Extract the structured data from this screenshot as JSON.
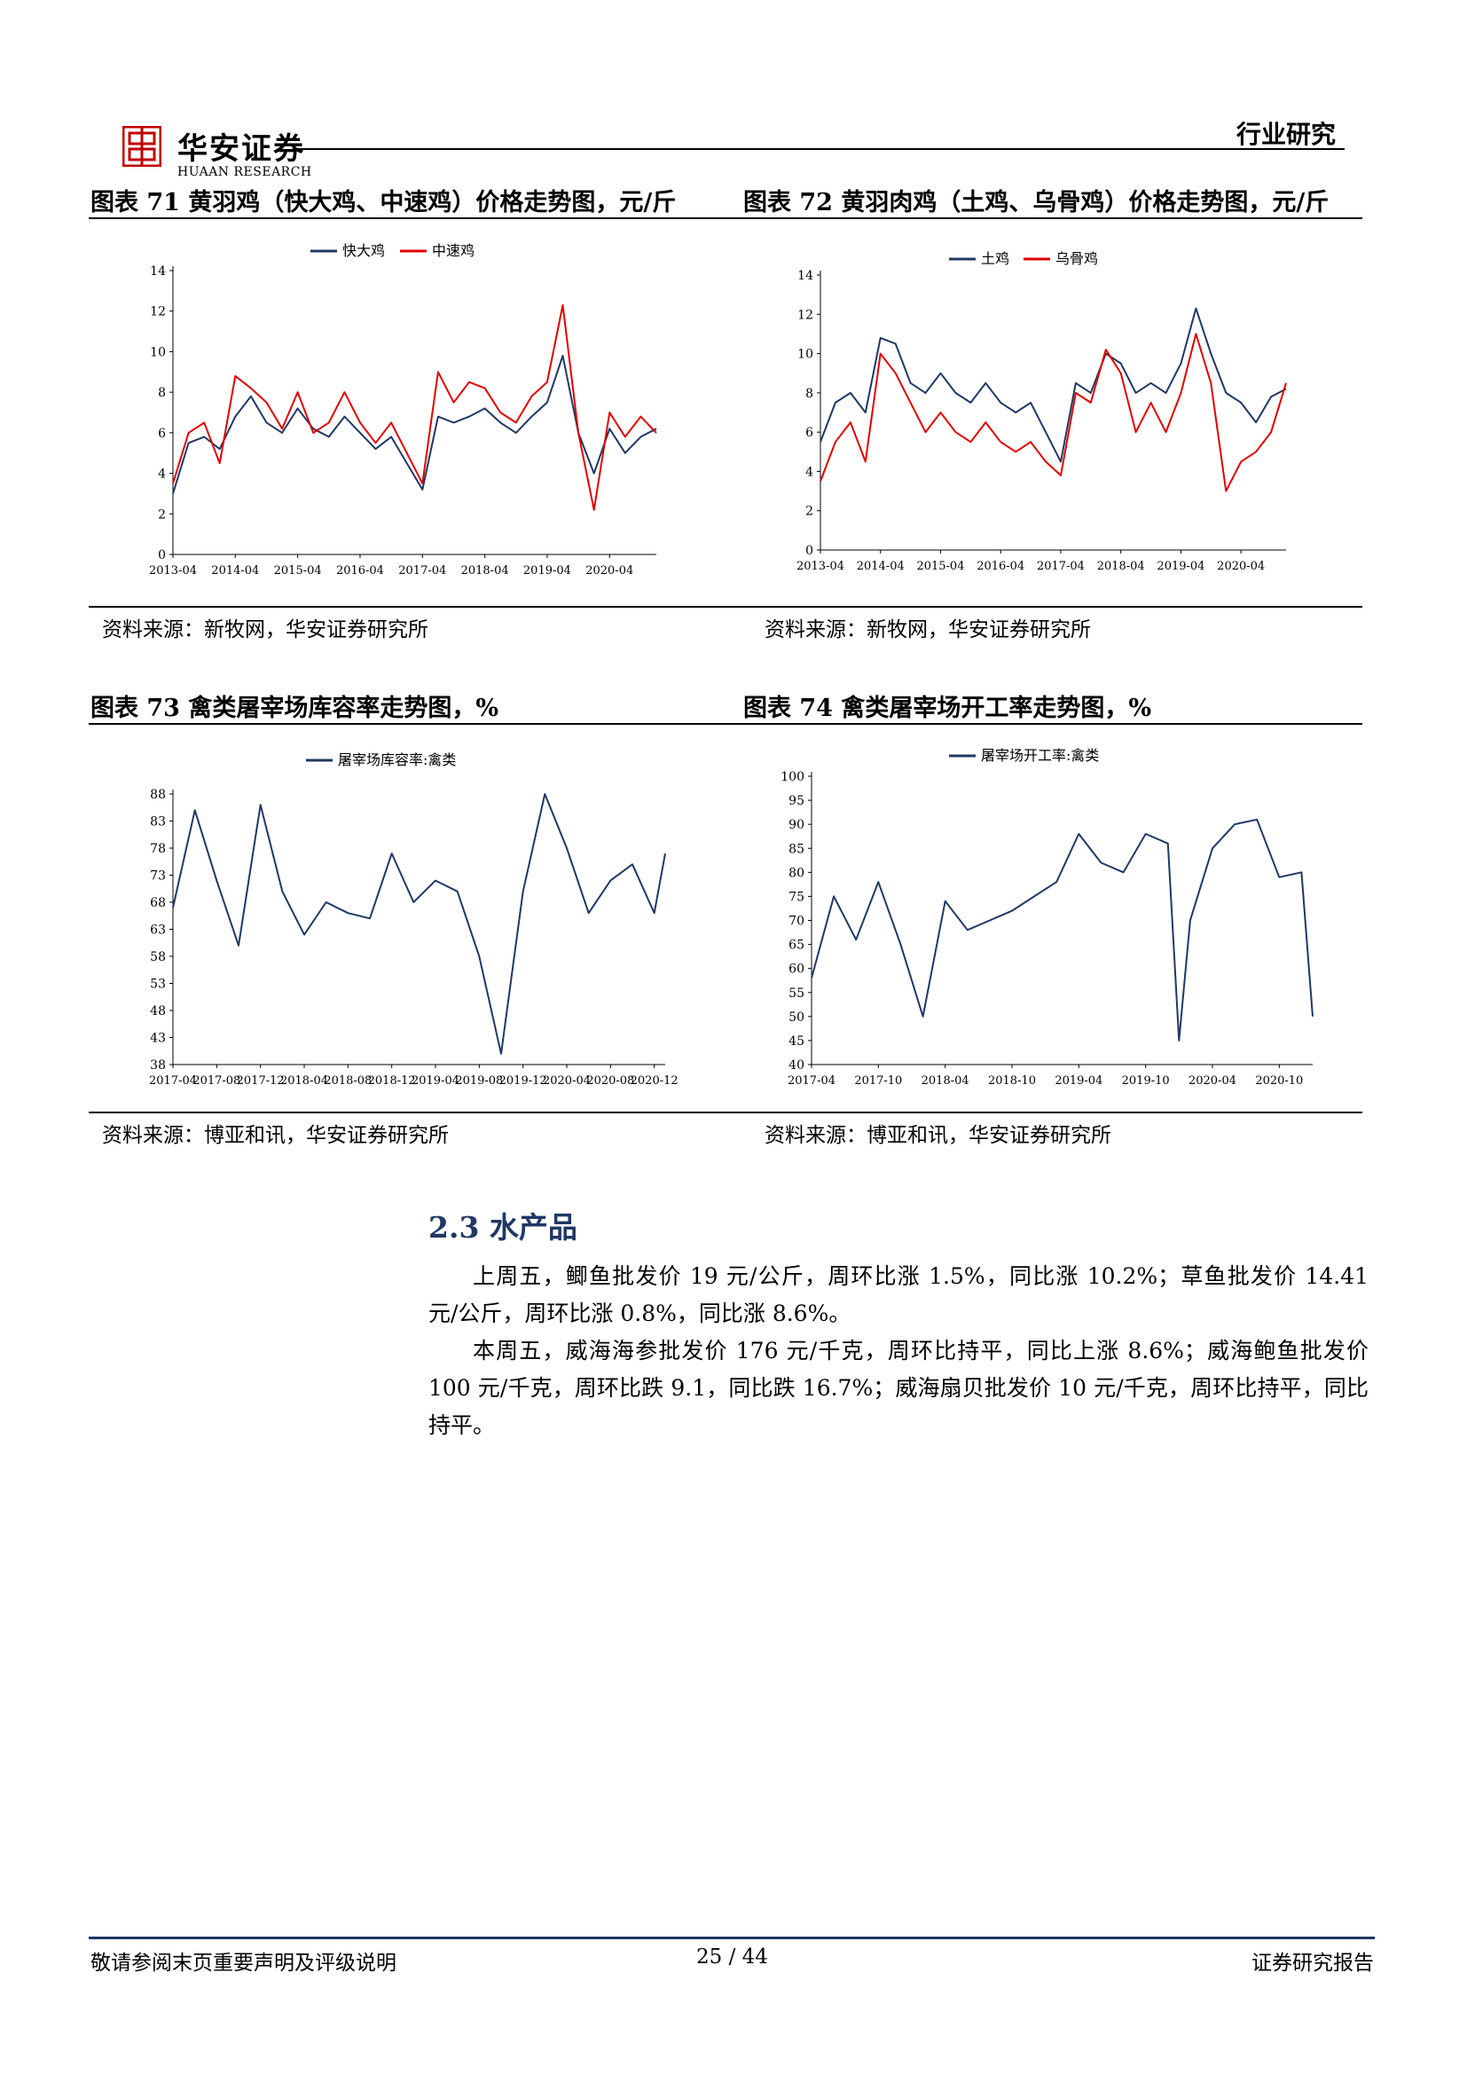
{
  "header": {
    "brand_cn": "华安证券",
    "brand_en": "HUAAN RESEARCH",
    "section": "行业研究",
    "brand_color": "#c00000"
  },
  "figures": [
    {
      "title": "图表 71 黄羽鸡（快大鸡、中速鸡）价格走势图，元/斤",
      "source": "资料来源：新牧网，华安证券研究所",
      "chart_data": {
        "type": "line",
        "legend_position": "top",
        "ylim": [
          0,
          14
        ],
        "yticks": [
          "0",
          "2",
          "4",
          "6",
          "8",
          "10",
          "12",
          "14"
        ],
        "xticks": [
          "2013-04",
          "2014-04",
          "2015-04",
          "2016-04",
          "2017-04",
          "2018-04",
          "2019-04",
          "2020-04"
        ],
        "x": [
          "2013-04",
          "2013-07",
          "2013-10",
          "2014-01",
          "2014-04",
          "2014-07",
          "2014-10",
          "2015-01",
          "2015-04",
          "2015-07",
          "2015-10",
          "2016-01",
          "2016-04",
          "2016-07",
          "2016-10",
          "2017-01",
          "2017-04",
          "2017-07",
          "2017-10",
          "2018-01",
          "2018-04",
          "2018-07",
          "2018-10",
          "2019-01",
          "2019-04",
          "2019-07",
          "2019-10",
          "2020-01",
          "2020-04",
          "2020-07",
          "2020-10",
          "2021-01"
        ],
        "series": [
          {
            "name": "快大鸡",
            "color": "#1f3864",
            "values": [
              3.0,
              5.5,
              5.8,
              5.2,
              6.8,
              7.8,
              6.5,
              6.0,
              7.2,
              6.2,
              5.8,
              6.8,
              6.0,
              5.2,
              5.8,
              4.5,
              3.2,
              6.8,
              6.5,
              6.8,
              7.2,
              6.5,
              6.0,
              6.8,
              7.5,
              9.8,
              6.0,
              4.0,
              6.2,
              5.0,
              5.8,
              6.2
            ]
          },
          {
            "name": "中速鸡",
            "color": "#e00000",
            "values": [
              3.5,
              6.0,
              6.5,
              4.5,
              8.8,
              8.2,
              7.5,
              6.2,
              8.0,
              6.0,
              6.5,
              8.0,
              6.5,
              5.5,
              6.5,
              5.0,
              3.5,
              9.0,
              7.5,
              8.5,
              8.2,
              7.0,
              6.5,
              7.8,
              8.5,
              12.3,
              6.0,
              2.2,
              7.0,
              5.8,
              6.8,
              6.0
            ]
          }
        ]
      }
    },
    {
      "title": "图表 72 黄羽肉鸡（土鸡、乌骨鸡）价格走势图，元/斤",
      "source": "资料来源：新牧网，华安证券研究所",
      "chart_data": {
        "type": "line",
        "legend_position": "top",
        "ylim": [
          0,
          14
        ],
        "yticks": [
          "0",
          "2",
          "4",
          "6",
          "8",
          "10",
          "12",
          "14"
        ],
        "xticks": [
          "2013-04",
          "2014-04",
          "2015-04",
          "2016-04",
          "2017-04",
          "2018-04",
          "2019-04",
          "2020-04"
        ],
        "x": [
          "2013-04",
          "2013-07",
          "2013-10",
          "2014-01",
          "2014-04",
          "2014-07",
          "2014-10",
          "2015-01",
          "2015-04",
          "2015-07",
          "2015-10",
          "2016-01",
          "2016-04",
          "2016-07",
          "2016-10",
          "2017-01",
          "2017-04",
          "2017-07",
          "2017-10",
          "2018-01",
          "2018-04",
          "2018-07",
          "2018-10",
          "2019-01",
          "2019-04",
          "2019-07",
          "2019-10",
          "2020-01",
          "2020-04",
          "2020-07",
          "2020-10",
          "2021-01"
        ],
        "series": [
          {
            "name": "土鸡",
            "color": "#1f3864",
            "values": [
              5.5,
              7.5,
              8.0,
              7.0,
              10.8,
              10.5,
              8.5,
              8.0,
              9.0,
              8.0,
              7.5,
              8.5,
              7.5,
              7.0,
              7.5,
              6.0,
              4.5,
              8.5,
              8.0,
              10.0,
              9.5,
              8.0,
              8.5,
              8.0,
              9.5,
              12.3,
              10.0,
              8.0,
              7.5,
              6.5,
              7.8,
              8.2
            ]
          },
          {
            "name": "乌骨鸡",
            "color": "#e00000",
            "values": [
              3.5,
              5.5,
              6.5,
              4.5,
              10.0,
              9.0,
              7.5,
              6.0,
              7.0,
              6.0,
              5.5,
              6.5,
              5.5,
              5.0,
              5.5,
              4.5,
              3.8,
              8.0,
              7.5,
              10.2,
              9.0,
              6.0,
              7.5,
              6.0,
              8.0,
              11.0,
              8.5,
              3.0,
              4.5,
              5.0,
              6.0,
              8.5
            ]
          }
        ]
      }
    },
    {
      "title": "图表 73 禽类屠宰场库容率走势图，%",
      "source": "资料来源：博亚和讯，华安证券研究所",
      "chart_data": {
        "type": "line",
        "legend_position": "top",
        "ylim": [
          38,
          88
        ],
        "yticks": [
          "38",
          "43",
          "48",
          "53",
          "58",
          "63",
          "68",
          "73",
          "78",
          "83",
          "88"
        ],
        "xticks": [
          "2017-04",
          "2017-08",
          "2017-12",
          "2018-04",
          "2018-08",
          "2018-12",
          "2019-04",
          "2019-08",
          "2019-12",
          "2020-04",
          "2020-08",
          "2020-12"
        ],
        "x": [
          "2017-04",
          "2017-06",
          "2017-08",
          "2017-10",
          "2017-12",
          "2018-02",
          "2018-04",
          "2018-06",
          "2018-08",
          "2018-10",
          "2018-12",
          "2019-02",
          "2019-04",
          "2019-06",
          "2019-08",
          "2019-10",
          "2019-12",
          "2020-02",
          "2020-04",
          "2020-06",
          "2020-08",
          "2020-10",
          "2020-12",
          "2021-01"
        ],
        "series": [
          {
            "name": "屠宰场库容率:禽类",
            "color": "#1f3864",
            "values": [
              67,
              85,
              72,
              60,
              86,
              70,
              62,
              68,
              66,
              65,
              77,
              68,
              72,
              70,
              58,
              40,
              70,
              88,
              78,
              66,
              72,
              75,
              66,
              77
            ]
          }
        ]
      }
    },
    {
      "title": "图表 74 禽类屠宰场开工率走势图，%",
      "source": "资料来源：博亚和讯，华安证券研究所",
      "chart_data": {
        "type": "line",
        "legend_position": "top",
        "ylim": [
          40,
          100
        ],
        "yticks": [
          "40",
          "45",
          "50",
          "55",
          "60",
          "65",
          "70",
          "75",
          "80",
          "85",
          "90",
          "95",
          "100"
        ],
        "xticks": [
          "2017-04",
          "2017-10",
          "2018-04",
          "2018-10",
          "2019-04",
          "2019-10",
          "2020-04",
          "2020-10"
        ],
        "x": [
          "2017-04",
          "2017-06",
          "2017-08",
          "2017-10",
          "2017-12",
          "2018-02",
          "2018-04",
          "2018-06",
          "2018-08",
          "2018-10",
          "2018-12",
          "2019-02",
          "2019-04",
          "2019-06",
          "2019-08",
          "2019-10",
          "2019-12",
          "2020-01",
          "2020-02",
          "2020-04",
          "2020-06",
          "2020-08",
          "2020-10",
          "2020-12",
          "2021-01"
        ],
        "series": [
          {
            "name": "屠宰场开工率:禽类",
            "color": "#1f3864",
            "values": [
              58,
              75,
              66,
              78,
              65,
              50,
              74,
              68,
              70,
              72,
              75,
              78,
              88,
              82,
              80,
              88,
              86,
              45,
              70,
              85,
              90,
              91,
              79,
              80,
              50
            ]
          }
        ]
      }
    }
  ],
  "section_2_3": {
    "heading": "2.3 水产品",
    "para1": "上周五，鲫鱼批发价 19 元/公斤，周环比涨 1.5%，同比涨 10.2%；草鱼批发价 14.41 元/公斤，周环比涨 0.8%，同比涨 8.6%。",
    "para2": "本周五，威海海参批发价 176 元/千克，周环比持平，同比上涨 8.6%；威海鲍鱼批发价 100 元/千克，周环比跌 9.1，同比跌 16.7%；威海扇贝批发价 10 元/千克，周环比持平，同比持平。"
  },
  "footer": {
    "left": "敬请参阅末页重要声明及评级说明",
    "center": "25 / 44",
    "right": "证券研究报告"
  }
}
